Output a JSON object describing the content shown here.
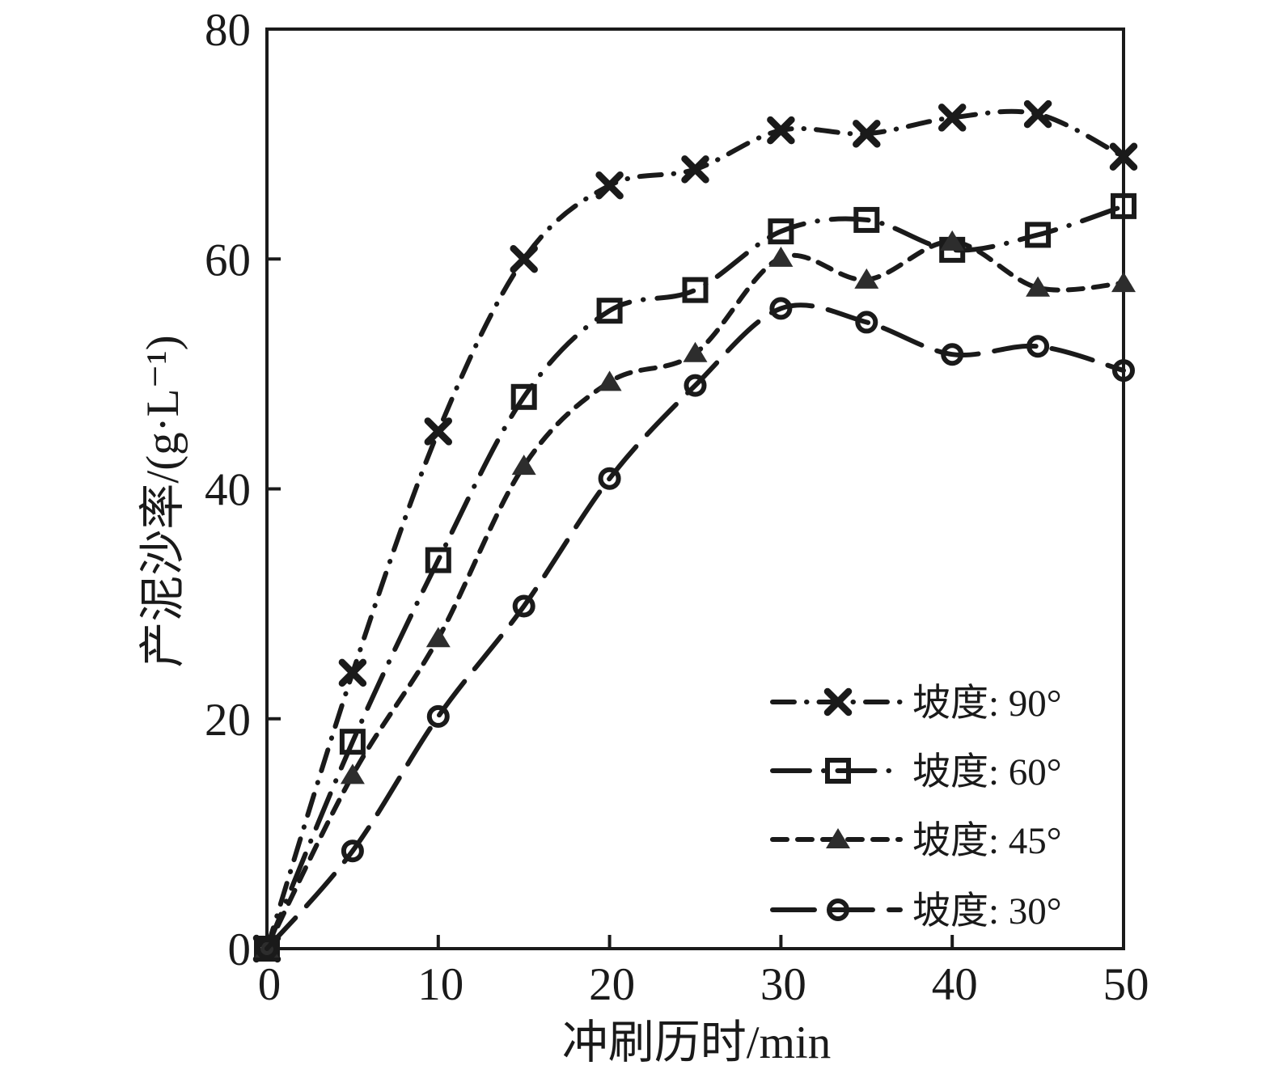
{
  "figure": {
    "background": "#ffffff",
    "ink_color": "#1a1a1a",
    "triangle_fill": "#2d2d2d"
  },
  "chart_data": {
    "type": "line",
    "title": "",
    "xlabel": "冲刷历时/min",
    "ylabel": "产泥沙率/(g·L⁻¹)",
    "xlim": [
      0,
      50
    ],
    "ylim": [
      0,
      80
    ],
    "xticks": [
      0,
      10,
      20,
      30,
      40,
      50
    ],
    "yticks": [
      0,
      20,
      40,
      60,
      80
    ],
    "grid": false,
    "legend_position": "inside-lower-right",
    "x": [
      0,
      5,
      10,
      15,
      20,
      25,
      30,
      35,
      40,
      45,
      50
    ],
    "series": [
      {
        "id": "slope-90",
        "label": "坡度: 90°",
        "marker": "x-marker",
        "linestyle": "dash-dot",
        "values": [
          0,
          24,
          45,
          60,
          66.4,
          67.8,
          71.2,
          70.9,
          72.3,
          72.6,
          68.9
        ]
      },
      {
        "id": "slope-60",
        "label": "坡度: 60°",
        "marker": "open-square-marker",
        "linestyle": "long-dash-dot",
        "values": [
          0,
          18,
          33.8,
          48,
          55.5,
          57.3,
          62.4,
          63.4,
          60.8,
          62.1,
          64.6
        ]
      },
      {
        "id": "slope-45",
        "label": "坡度: 45°",
        "marker": "filled-triangle-marker",
        "linestyle": "dashed",
        "values": [
          0,
          15.1,
          27,
          42,
          49.3,
          51.8,
          60.1,
          58.2,
          61.5,
          57.5,
          57.9
        ]
      },
      {
        "id": "slope-30",
        "label": "坡度: 30°",
        "marker": "open-circle-marker",
        "linestyle": "long-dash",
        "values": [
          0,
          8.5,
          20.2,
          29.8,
          40.9,
          49,
          55.7,
          54.5,
          51.7,
          52.4,
          50.3
        ]
      }
    ]
  }
}
